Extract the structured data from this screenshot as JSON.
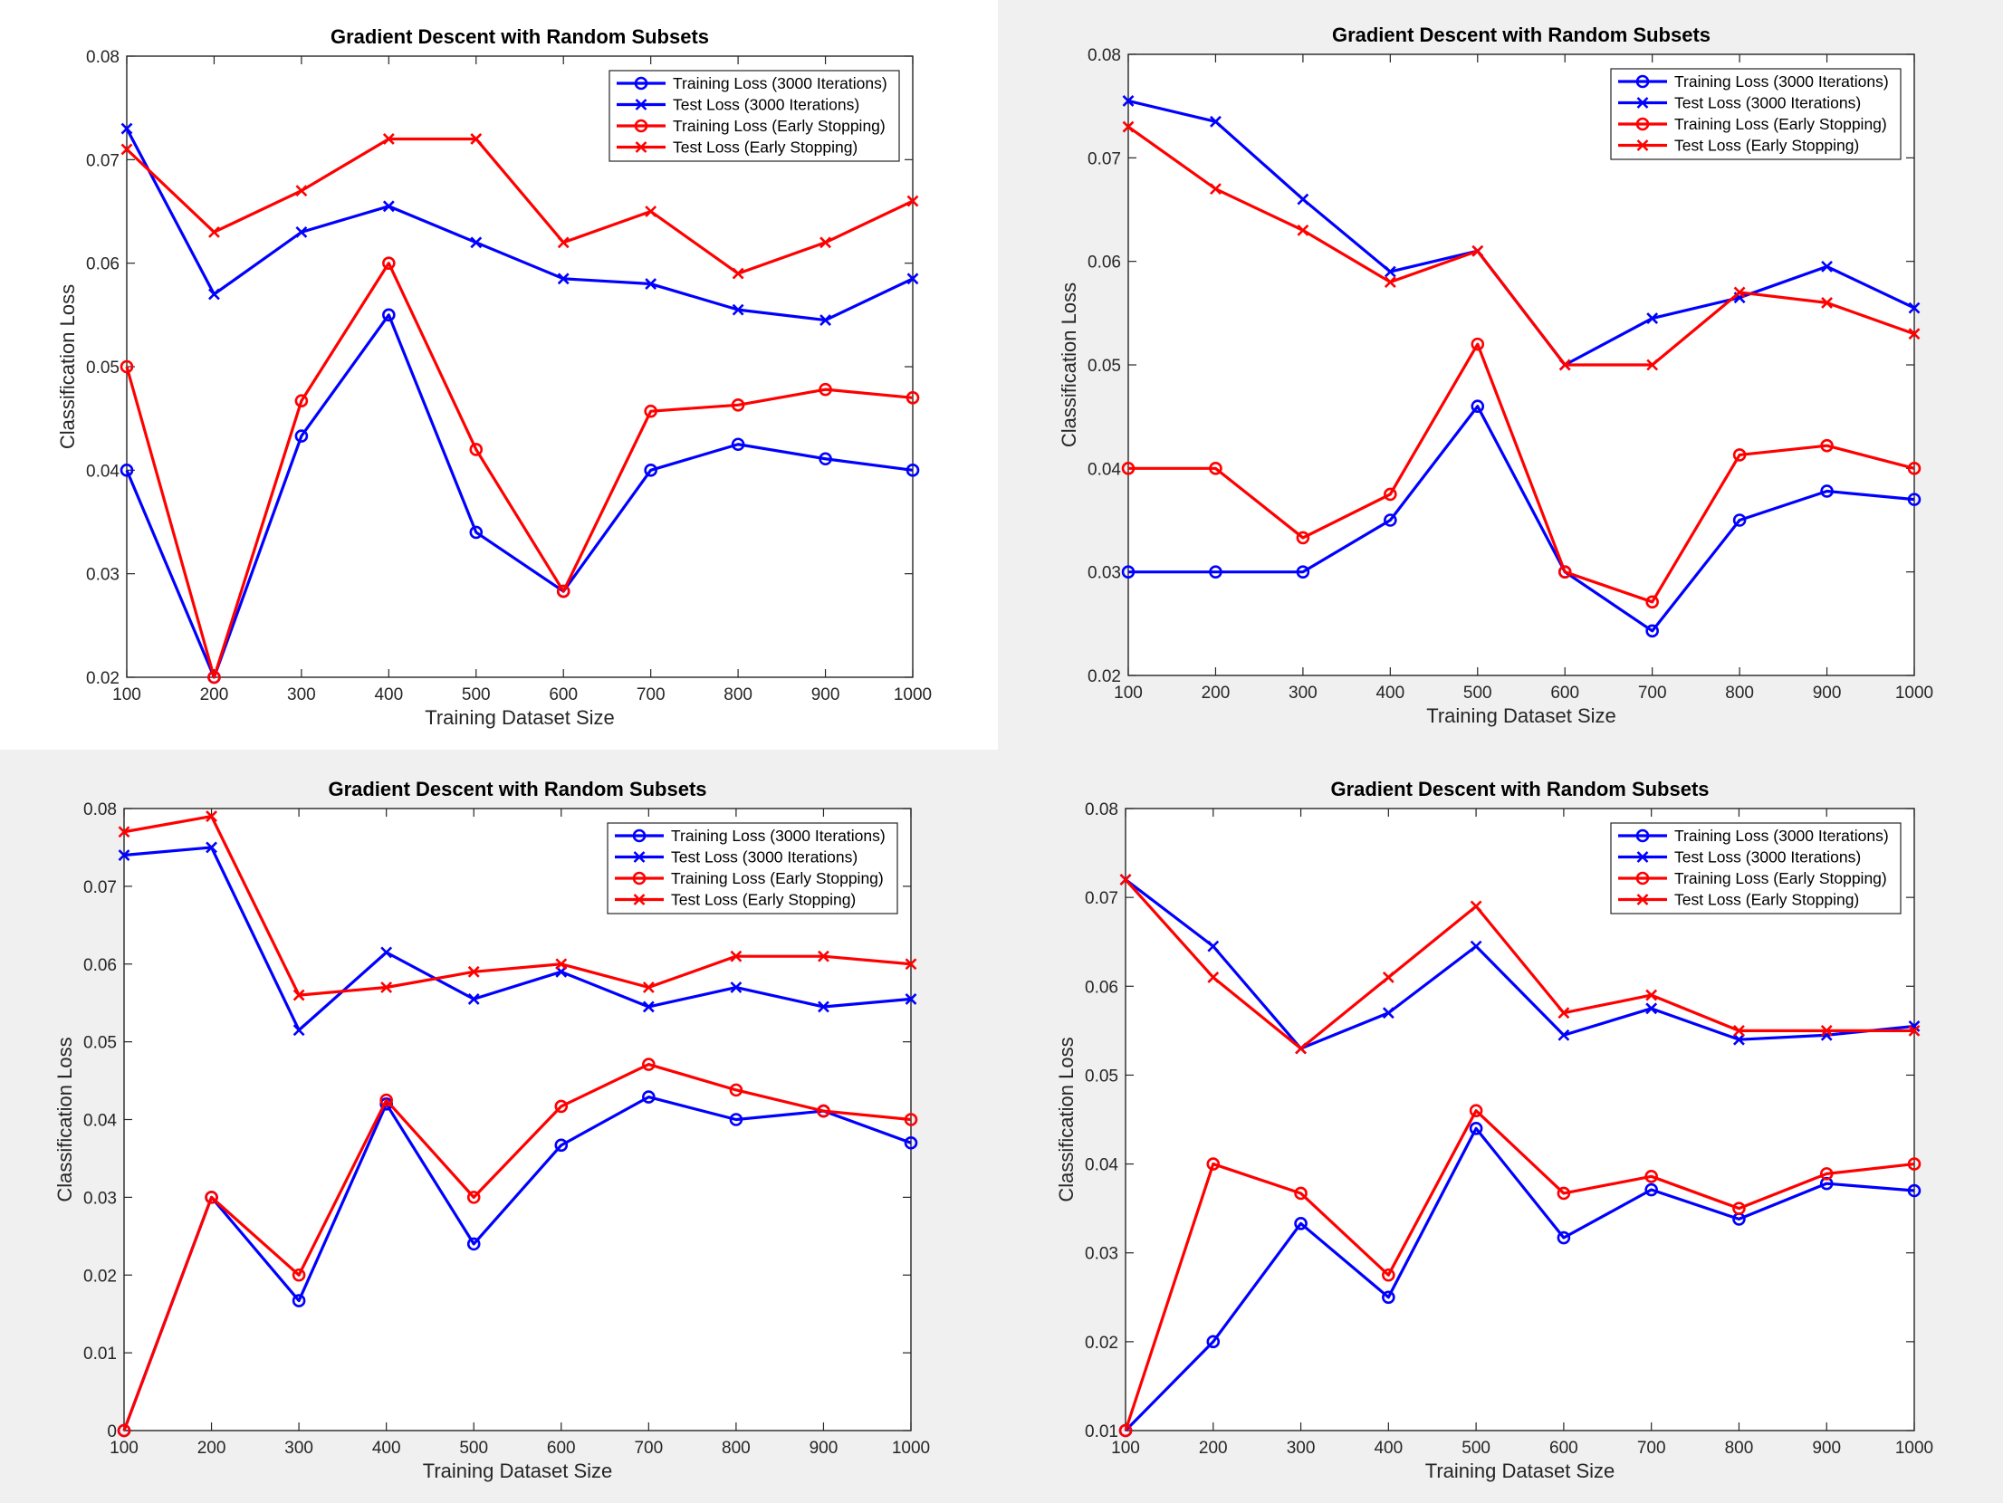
{
  "colors": {
    "blue": "#0000ff",
    "red": "#ff0000"
  },
  "chart_data": [
    {
      "type": "line",
      "title": "Gradient Descent with Random Subsets",
      "xlabel": "Training Dataset Size",
      "ylabel": "Classification Loss",
      "xlim": [
        100,
        1000
      ],
      "ylim": [
        0.02,
        0.08
      ],
      "xticks": [
        100,
        200,
        300,
        400,
        500,
        600,
        700,
        800,
        900,
        1000
      ],
      "yticks": [
        "0.02",
        "0.03",
        "0.04",
        "0.05",
        "0.06",
        "0.07",
        "0.08"
      ],
      "legend_position": "top-right",
      "x": [
        100,
        200,
        300,
        400,
        500,
        600,
        700,
        800,
        900,
        1000
      ],
      "series": [
        {
          "name": "Training Loss (3000 Iterations)",
          "color": "blue",
          "marker": "o",
          "values": [
            0.04,
            0.02,
            0.0433,
            0.055,
            0.034,
            0.0283,
            0.04,
            0.0425,
            0.0411,
            0.04
          ]
        },
        {
          "name": "Test Loss (3000 Iterations)",
          "color": "blue",
          "marker": "x",
          "values": [
            0.073,
            0.057,
            0.063,
            0.0655,
            0.062,
            0.0585,
            0.058,
            0.0555,
            0.0545,
            0.0585
          ]
        },
        {
          "name": "Training Loss (Early Stopping)",
          "color": "red",
          "marker": "o",
          "values": [
            0.05,
            0.02,
            0.0467,
            0.06,
            0.042,
            0.0283,
            0.0457,
            0.0463,
            0.0478,
            0.047
          ]
        },
        {
          "name": "Test Loss (Early Stopping)",
          "color": "red",
          "marker": "x",
          "values": [
            0.071,
            0.063,
            0.067,
            0.072,
            0.072,
            0.062,
            0.065,
            0.059,
            0.062,
            0.066
          ]
        }
      ]
    },
    {
      "type": "line",
      "title": "Gradient Descent with Random Subsets",
      "xlabel": "Training Dataset Size",
      "ylabel": "Classification Loss",
      "xlim": [
        100,
        1000
      ],
      "ylim": [
        0.02,
        0.08
      ],
      "xticks": [
        100,
        200,
        300,
        400,
        500,
        600,
        700,
        800,
        900,
        1000
      ],
      "yticks": [
        "0.02",
        "0.03",
        "0.04",
        "0.05",
        "0.06",
        "0.07",
        "0.08"
      ],
      "legend_position": "top-right",
      "x": [
        100,
        200,
        300,
        400,
        500,
        600,
        700,
        800,
        900,
        1000
      ],
      "series": [
        {
          "name": "Training Loss (3000 Iterations)",
          "color": "blue",
          "marker": "o",
          "values": [
            0.03,
            0.03,
            0.03,
            0.035,
            0.046,
            0.03,
            0.0243,
            0.035,
            0.0378,
            0.037
          ]
        },
        {
          "name": "Test Loss (3000 Iterations)",
          "color": "blue",
          "marker": "x",
          "values": [
            0.0755,
            0.0735,
            0.066,
            0.059,
            0.061,
            0.05,
            0.0545,
            0.0565,
            0.0595,
            0.0555
          ]
        },
        {
          "name": "Training Loss (Early Stopping)",
          "color": "red",
          "marker": "o",
          "values": [
            0.04,
            0.04,
            0.0333,
            0.0375,
            0.052,
            0.03,
            0.0271,
            0.0413,
            0.0422,
            0.04
          ]
        },
        {
          "name": "Test Loss (Early Stopping)",
          "color": "red",
          "marker": "x",
          "values": [
            0.073,
            0.067,
            0.063,
            0.058,
            0.061,
            0.05,
            0.05,
            0.057,
            0.056,
            0.053
          ]
        }
      ]
    },
    {
      "type": "line",
      "title": "Gradient Descent with Random Subsets",
      "xlabel": "Training Dataset Size",
      "ylabel": "Classification Loss",
      "xlim": [
        100,
        1000
      ],
      "ylim": [
        0,
        0.08
      ],
      "xticks": [
        100,
        200,
        300,
        400,
        500,
        600,
        700,
        800,
        900,
        1000
      ],
      "yticks": [
        "0",
        "0.01",
        "0.02",
        "0.03",
        "0.04",
        "0.05",
        "0.06",
        "0.07",
        "0.08"
      ],
      "legend_position": "top-right",
      "x": [
        100,
        200,
        300,
        400,
        500,
        600,
        700,
        800,
        900,
        1000
      ],
      "series": [
        {
          "name": "Training Loss (3000 Iterations)",
          "color": "blue",
          "marker": "o",
          "values": [
            0.0,
            0.03,
            0.0167,
            0.042,
            0.024,
            0.0367,
            0.0429,
            0.04,
            0.0411,
            0.037
          ]
        },
        {
          "name": "Test Loss (3000 Iterations)",
          "color": "blue",
          "marker": "x",
          "values": [
            0.074,
            0.075,
            0.0515,
            0.0615,
            0.0555,
            0.059,
            0.0545,
            0.057,
            0.0545,
            0.0555
          ]
        },
        {
          "name": "Training Loss (Early Stopping)",
          "color": "red",
          "marker": "o",
          "values": [
            0.0,
            0.03,
            0.02,
            0.0425,
            0.03,
            0.0417,
            0.0471,
            0.0438,
            0.0411,
            0.04
          ]
        },
        {
          "name": "Test Loss (Early Stopping)",
          "color": "red",
          "marker": "x",
          "values": [
            0.077,
            0.079,
            0.056,
            0.057,
            0.059,
            0.06,
            0.057,
            0.061,
            0.061,
            0.06
          ]
        }
      ]
    },
    {
      "type": "line",
      "title": "Gradient Descent with Random Subsets",
      "xlabel": "Training Dataset Size",
      "ylabel": "Classification Loss",
      "xlim": [
        100,
        1000
      ],
      "ylim": [
        0.01,
        0.08
      ],
      "xticks": [
        100,
        200,
        300,
        400,
        500,
        600,
        700,
        800,
        900,
        1000
      ],
      "yticks": [
        "0.01",
        "0.02",
        "0.03",
        "0.04",
        "0.05",
        "0.06",
        "0.07",
        "0.08"
      ],
      "legend_position": "top-right",
      "x": [
        100,
        200,
        300,
        400,
        500,
        600,
        700,
        800,
        900,
        1000
      ],
      "series": [
        {
          "name": "Training Loss (3000 Iterations)",
          "color": "blue",
          "marker": "o",
          "values": [
            0.01,
            0.02,
            0.0333,
            0.025,
            0.044,
            0.0317,
            0.0371,
            0.0338,
            0.0378,
            0.037
          ]
        },
        {
          "name": "Test Loss (3000 Iterations)",
          "color": "blue",
          "marker": "x",
          "values": [
            0.072,
            0.0645,
            0.053,
            0.057,
            0.0645,
            0.0545,
            0.0575,
            0.054,
            0.0545,
            0.0555
          ]
        },
        {
          "name": "Training Loss (Early Stopping)",
          "color": "red",
          "marker": "o",
          "values": [
            0.01,
            0.04,
            0.0367,
            0.0275,
            0.046,
            0.0367,
            0.0386,
            0.035,
            0.0389,
            0.04
          ]
        },
        {
          "name": "Test Loss (Early Stopping)",
          "color": "red",
          "marker": "x",
          "values": [
            0.072,
            0.061,
            0.053,
            0.061,
            0.069,
            0.057,
            0.059,
            0.055,
            0.055,
            0.055
          ]
        }
      ]
    }
  ]
}
